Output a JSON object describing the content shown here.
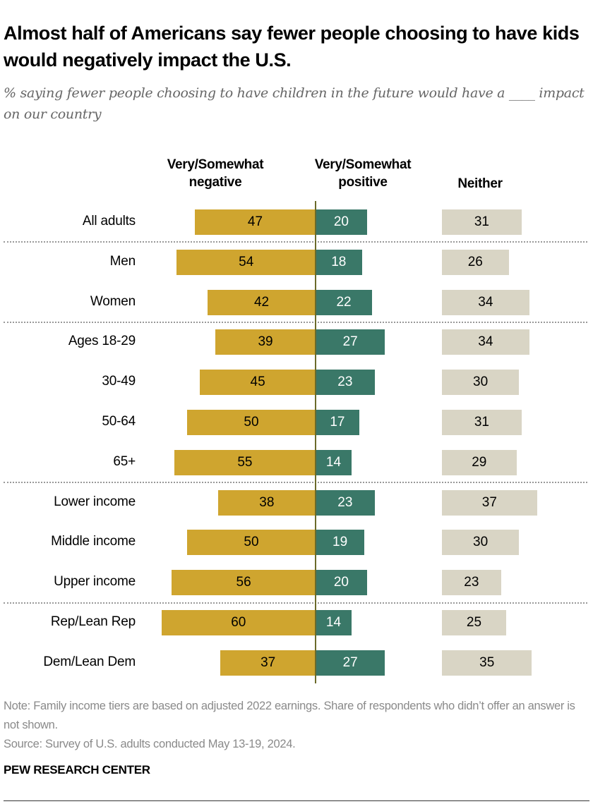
{
  "title": "Almost half of Americans say fewer people choosing to have kids would negatively impact the U.S.",
  "subtitle": "% saying fewer people choosing to have children in the future would have a ____ impact on our country",
  "chart_data": {
    "type": "bar",
    "orientation": "horizontal diverging",
    "categories": [
      "All adults",
      "Men",
      "Women",
      "Ages 18-29",
      "30-49",
      "50-64",
      "65+",
      "Lower income",
      "Middle income",
      "Upper income",
      "Rep/Lean Rep",
      "Dem/Lean Dem"
    ],
    "groups_separated_after": [
      "All adults",
      "Women",
      "65+",
      "Upper income"
    ],
    "series": [
      {
        "name": "Very/Somewhat negative",
        "color": "#CFA52F",
        "values": [
          47,
          54,
          42,
          39,
          45,
          50,
          55,
          38,
          50,
          56,
          60,
          37
        ]
      },
      {
        "name": "Very/Somewhat positive",
        "color": "#3A7868",
        "values": [
          20,
          18,
          22,
          27,
          23,
          17,
          14,
          23,
          19,
          20,
          14,
          27
        ]
      },
      {
        "name": "Neither",
        "color": "#D9D5C5",
        "values": [
          31,
          26,
          34,
          34,
          30,
          31,
          29,
          37,
          30,
          23,
          25,
          35
        ]
      }
    ],
    "data_labels": true,
    "grid": false
  },
  "col_headers": {
    "negative_line1": "Very/Somewhat",
    "negative_line2": "negative",
    "positive_line1": "Very/Somewhat",
    "positive_line2": "positive",
    "neither": "Neither"
  },
  "note": "Note: Family income tiers are based on adjusted 2022 earnings. Share of respondents who didn’t offer an answer is not shown.",
  "source": "Source: Survey of U.S. adults conducted May 13-19, 2024.",
  "brand": "PEW RESEARCH CENTER"
}
